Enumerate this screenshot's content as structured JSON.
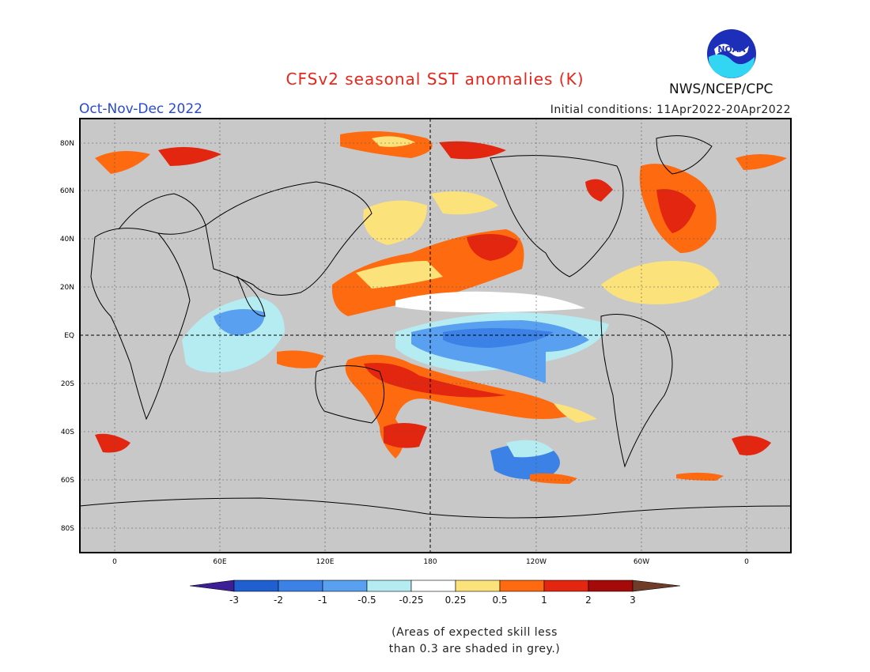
{
  "header": {
    "title": "CFSv2 seasonal SST anomalies (K)",
    "season": "Oct-Nov-Dec 2022",
    "initial_conditions": "Initial conditions: 11Apr2022-20Apr2022",
    "agency": "NWS/NCEP/CPC",
    "logo_text": "NOAA"
  },
  "map": {
    "lat_labels": [
      "80N",
      "60N",
      "40N",
      "20N",
      "EQ",
      "20S",
      "40S",
      "60S",
      "80S"
    ],
    "lon_labels": [
      "0",
      "60E",
      "120E",
      "180",
      "120W",
      "60W",
      "0"
    ],
    "colors": {
      "land_grey": "#c8c8c8",
      "ocean_white": "#ffffff",
      "coastline": "#000000"
    }
  },
  "colorbar": {
    "labels": [
      "-3",
      "-2",
      "-1",
      "-0.5",
      "-0.25",
      "0.25",
      "0.5",
      "1",
      "2",
      "3"
    ],
    "colors": [
      "#3c1e96",
      "#1f5fcf",
      "#3c82e6",
      "#5aa0f0",
      "#b4ecf2",
      "#ffffff",
      "#fce27a",
      "#fd6a0f",
      "#e3260f",
      "#a50a0a",
      "#6e3c28"
    ]
  },
  "note": {
    "line1": "(Areas of expected skill less",
    "line2": "than 0.3 are shaded in grey.)"
  }
}
